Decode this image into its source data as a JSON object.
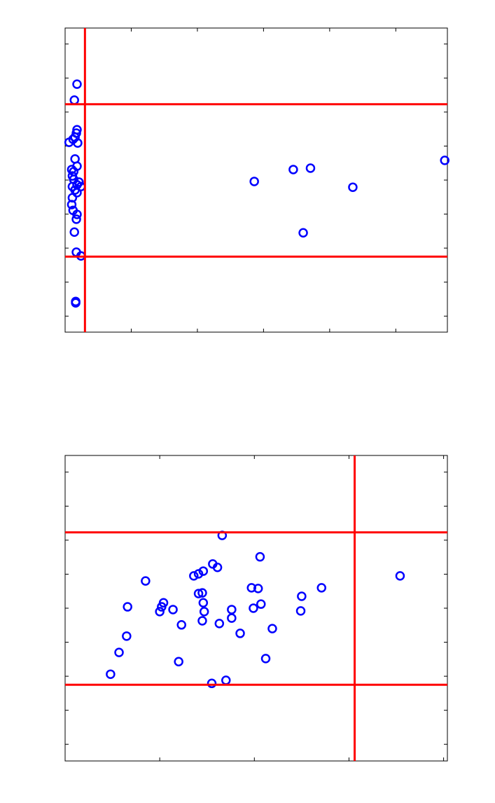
{
  "chart_data": [
    {
      "type": "scatter",
      "color": "#0000ff",
      "line_color": "#ff0000",
      "xlim": [
        0,
        5.78
      ],
      "ylim": [
        -0.47,
        8.47
      ],
      "xticks": [
        1,
        2,
        3,
        4,
        5
      ],
      "yticks": [
        0,
        1,
        2,
        3,
        4,
        5,
        6,
        7,
        8
      ],
      "vlines": [
        0.3
      ],
      "hlines": [
        6.23,
        1.75
      ],
      "x": [
        0.18,
        0.14,
        0.18,
        0.17,
        0.15,
        0.12,
        0.19,
        0.06,
        0.15,
        0.18,
        0.1,
        0.13,
        0.11,
        0.13,
        0.21,
        0.18,
        0.24,
        0.11,
        0.15,
        0.18,
        0.11,
        0.1,
        0.12,
        0.18,
        0.17,
        0.14,
        0.17,
        0.24,
        0.16,
        0.16,
        2.86,
        3.45,
        3.71,
        4.35,
        3.6,
        5.74
      ],
      "y": [
        6.82,
        6.35,
        5.48,
        5.38,
        5.26,
        5.2,
        5.09,
        5.11,
        4.62,
        4.41,
        4.31,
        4.25,
        4.12,
        4.02,
        3.94,
        3.86,
        3.81,
        3.81,
        3.71,
        3.63,
        3.48,
        3.28,
        3.11,
        2.99,
        2.85,
        2.47,
        1.88,
        1.77,
        0.43,
        0.39,
        3.96,
        4.31,
        4.35,
        3.79,
        2.45,
        4.58
      ]
    },
    {
      "type": "scatter",
      "color": "#0000ff",
      "line_color": "#ff0000",
      "xlim": [
        0,
        4.04
      ],
      "ylim": [
        -0.49,
        8.49
      ],
      "xticks": [
        1,
        2,
        3,
        4
      ],
      "yticks": [
        0,
        1,
        2,
        3,
        4,
        5,
        6,
        7,
        8
      ],
      "vlines": [
        3.06
      ],
      "hlines": [
        6.23,
        1.75
      ],
      "x": [
        1.66,
        2.06,
        1.56,
        1.61,
        1.46,
        1.41,
        1.36,
        0.85,
        3.54,
        1.97,
        2.04,
        2.71,
        1.41,
        1.45,
        2.5,
        1.04,
        1.46,
        0.66,
        1.02,
        2.07,
        1.14,
        1.99,
        1.76,
        1.0,
        1.47,
        2.49,
        1.76,
        1.45,
        1.63,
        1.23,
        2.19,
        0.65,
        1.85,
        0.57,
        2.12,
        1.2,
        0.48,
        1.7,
        1.55
      ],
      "y": [
        6.14,
        5.51,
        5.3,
        5.2,
        5.09,
        5.01,
        4.95,
        4.8,
        4.95,
        4.6,
        4.58,
        4.6,
        4.43,
        4.45,
        4.35,
        4.16,
        4.16,
        4.04,
        4.04,
        4.12,
        3.96,
        4.0,
        3.96,
        3.9,
        3.9,
        3.92,
        3.71,
        3.63,
        3.55,
        3.51,
        3.4,
        3.18,
        3.26,
        2.7,
        2.52,
        2.43,
        2.06,
        1.88,
        1.79
      ]
    }
  ]
}
